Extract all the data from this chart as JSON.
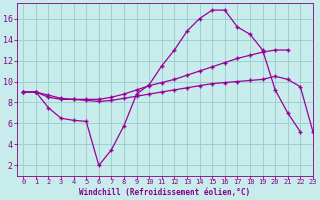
{
  "xlabel": "Windchill (Refroidissement éolien,°C)",
  "x_values": [
    0,
    1,
    2,
    3,
    4,
    5,
    6,
    7,
    8,
    9,
    10,
    11,
    12,
    13,
    14,
    15,
    16,
    17,
    18,
    19,
    20,
    21,
    22,
    23
  ],
  "line1": [
    9.0,
    9.0,
    7.5,
    6.5,
    6.3,
    6.2,
    2.0,
    3.5,
    5.8,
    8.8,
    9.7,
    11.5,
    13.0,
    14.8,
    16.0,
    16.8,
    16.8,
    15.2,
    14.5,
    13.0,
    9.2,
    7.0,
    5.2,
    null
  ],
  "line2": [
    9.0,
    9.0,
    8.5,
    8.3,
    8.3,
    8.3,
    8.3,
    8.5,
    8.8,
    9.2,
    9.6,
    9.9,
    10.2,
    10.6,
    11.0,
    11.4,
    11.8,
    12.2,
    12.5,
    12.8,
    13.0,
    13.0,
    null,
    null
  ],
  "line3": [
    9.0,
    9.0,
    8.7,
    8.4,
    8.3,
    8.2,
    8.1,
    8.2,
    8.4,
    8.6,
    8.8,
    9.0,
    9.2,
    9.4,
    9.6,
    9.8,
    9.9,
    10.0,
    10.1,
    10.2,
    10.5,
    10.2,
    9.5,
    5.2
  ],
  "line_color": "#990099",
  "bg_color": "#c8ecec",
  "grid_color": "#99cccc",
  "xlim": [
    -0.5,
    23
  ],
  "ylim": [
    1,
    17.5
  ],
  "yticks": [
    2,
    4,
    6,
    8,
    10,
    12,
    14,
    16
  ],
  "xticks": [
    0,
    1,
    2,
    3,
    4,
    5,
    6,
    7,
    8,
    9,
    10,
    11,
    12,
    13,
    14,
    15,
    16,
    17,
    18,
    19,
    20,
    21,
    22,
    23
  ],
  "tick_color": "#880088",
  "label_color": "#880088"
}
